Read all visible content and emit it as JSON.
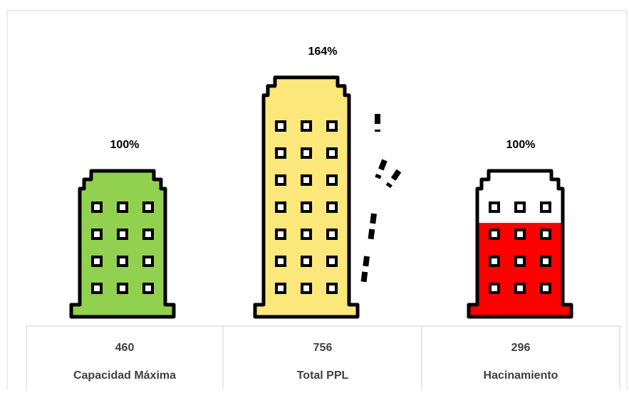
{
  "chart_data": {
    "type": "pictograph",
    "categories": [
      "Capacidad Máxima",
      "Total PPL",
      "Hacinamiento"
    ],
    "values": [
      460,
      756,
      296
    ],
    "percentages": [
      100,
      164,
      100
    ],
    "percentage_labels": [
      "100%",
      "164%",
      "100%"
    ],
    "colors": [
      "#92d050",
      "#fbe77a",
      "#ff0000"
    ]
  }
}
